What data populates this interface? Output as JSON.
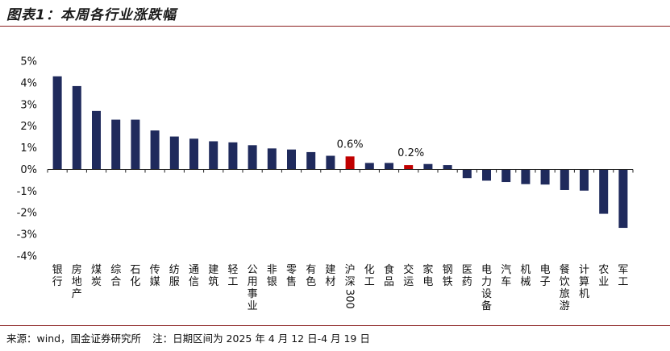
{
  "title": "图表1：本周各行业涨跌幅",
  "footer": {
    "source": "来源：wind，国金证券研究所",
    "note": "注：日期区间为 2025 年 4 月 12 日-4 月 19 日"
  },
  "colors": {
    "default": "#1f2a5c",
    "highlight": "#c00000"
  },
  "chart_data": {
    "type": "bar",
    "title": "",
    "xlabel": "",
    "ylabel": "",
    "ylim": [
      -4,
      5
    ],
    "yticks": [
      "5%",
      "4%",
      "3%",
      "2%",
      "1%",
      "0%",
      "-1%",
      "-2%",
      "-3%",
      "-4%"
    ],
    "ytick_values": [
      5,
      4,
      3,
      2,
      1,
      0,
      -1,
      -2,
      -3,
      -4
    ],
    "categories": [
      "银行",
      "房地产",
      "煤炭",
      "综合",
      "石化",
      "传媒",
      "纺服",
      "通信",
      "建筑",
      "轻工",
      "公用事业",
      "非银",
      "零售",
      "有色",
      "建材",
      "沪深300",
      "化工",
      "食品",
      "交运",
      "家电",
      "钢铁",
      "医药",
      "电力设备",
      "汽车",
      "机械",
      "电子",
      "餐饮旅游",
      "计算机",
      "农业",
      "军工"
    ],
    "values": [
      4.3,
      3.85,
      2.7,
      2.3,
      2.3,
      1.8,
      1.52,
      1.42,
      1.3,
      1.25,
      1.12,
      0.97,
      0.92,
      0.8,
      0.63,
      0.6,
      0.3,
      0.3,
      0.2,
      0.25,
      0.2,
      -0.4,
      -0.52,
      -0.58,
      -0.68,
      -0.7,
      -0.95,
      -0.98,
      -2.05,
      -2.7
    ],
    "highlighted": [
      "沪深300",
      "交运"
    ],
    "data_labels": [
      {
        "category": "沪深300",
        "text": "0.6%"
      },
      {
        "category": "交运",
        "text": "0.2%"
      }
    ],
    "grid": false,
    "legend": "none"
  }
}
